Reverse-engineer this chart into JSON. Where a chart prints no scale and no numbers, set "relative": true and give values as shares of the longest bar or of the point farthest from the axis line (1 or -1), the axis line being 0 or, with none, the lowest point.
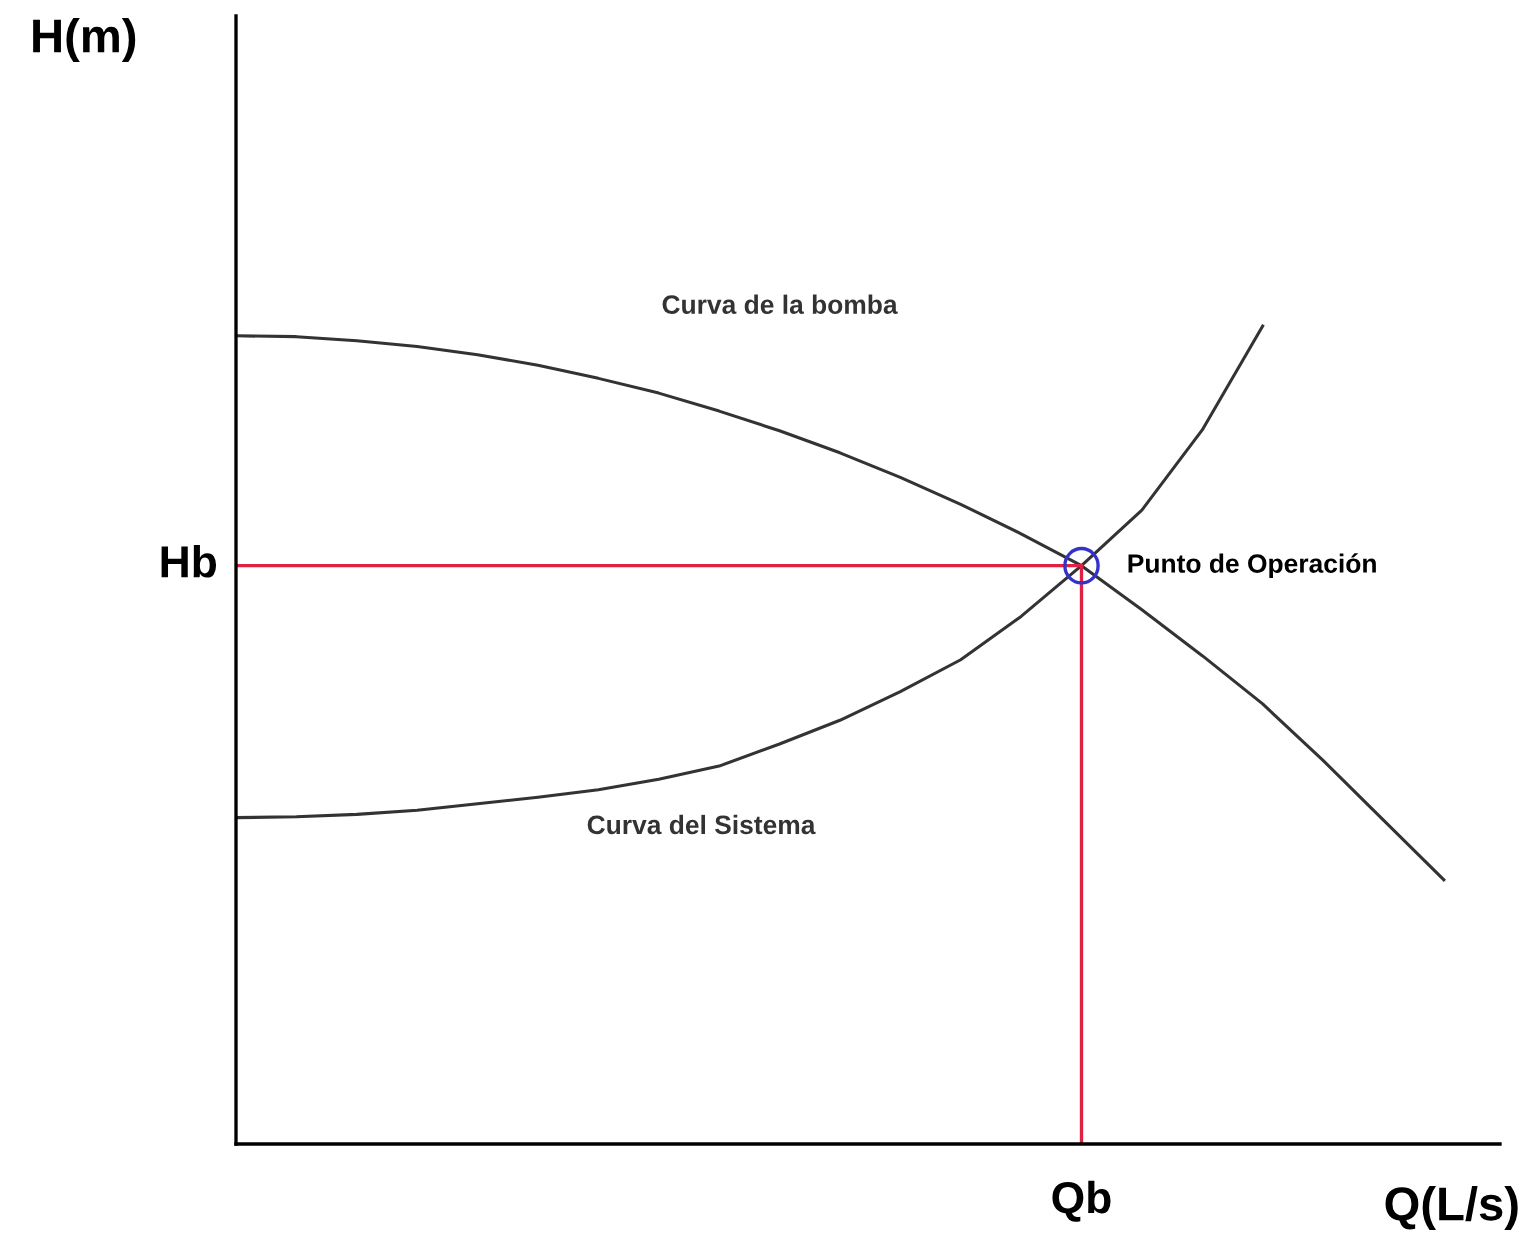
{
  "chart_data": {
    "type": "line",
    "relative": true,
    "xlabel": "Q(L/s)",
    "categories": [
      null,
      null,
      null,
      null,
      null,
      null,
      null,
      null,
      null,
      null,
      null,
      null,
      null,
      null,
      null,
      null,
      null,
      null,
      null,
      null,
      null
    ],
    "series": [
      {
        "name": "Curva de la bomba",
        "color": "#333333",
        "values": [
          0.988,
          0.987,
          0.982,
          0.975,
          0.965,
          0.952,
          0.936,
          0.918,
          0.896,
          0.872,
          0.845,
          0.815,
          0.782,
          0.746,
          0.707,
          0.653,
          0.597,
          0.538,
          0.469,
          0.396,
          0.323
        ]
      },
      {
        "name": "Curva del Sistema",
        "color": "#333333",
        "values": [
          0.399,
          0.4,
          0.403,
          0.408,
          0.416,
          0.424,
          0.433,
          0.446,
          0.462,
          0.489,
          0.518,
          0.553,
          0.592,
          0.645,
          0.707,
          0.775,
          0.873,
          1.0,
          null,
          null,
          null
        ]
      }
    ],
    "ref_lines": [
      {
        "axis": "y",
        "value": 0.707,
        "label": "Hb",
        "color": "#dd2244"
      }
    ],
    "annotations": [
      "H(m)",
      "Punto de Operación",
      "Qb"
    ]
  }
}
